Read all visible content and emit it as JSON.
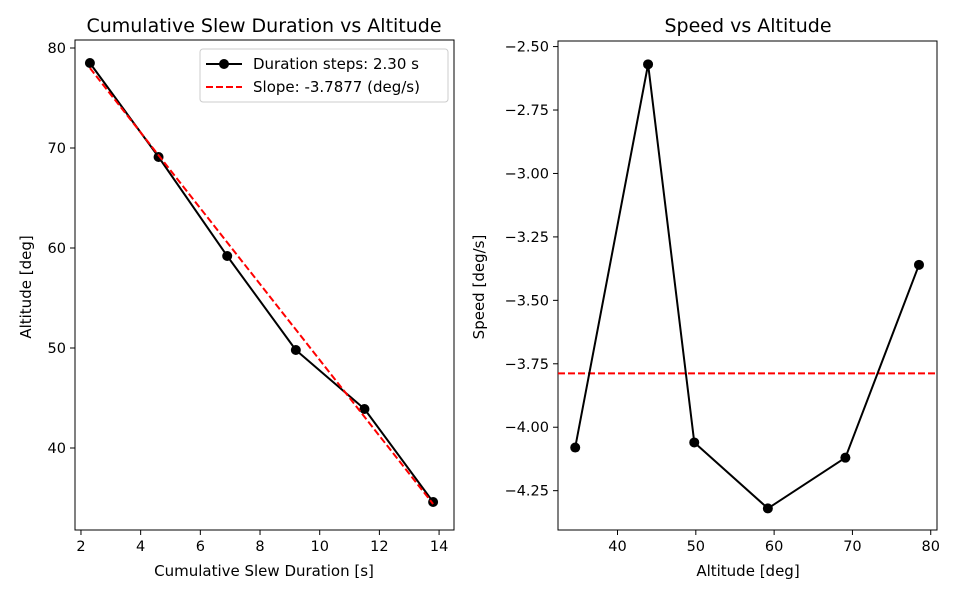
{
  "chart_data": [
    {
      "type": "line",
      "title": "Cumulative Slew Duration vs Altitude",
      "xlabel": "Cumulative Slew Duration [s]",
      "ylabel": "Altitude [deg]",
      "xlim": [
        1.8,
        14.5
      ],
      "ylim": [
        31.8,
        80.8
      ],
      "xticks": [
        2,
        4,
        6,
        8,
        10,
        12,
        14
      ],
      "yticks": [
        40,
        50,
        60,
        70,
        80
      ],
      "x_tick_labels": [
        "2",
        "4",
        "6",
        "8",
        "10",
        "12",
        "14"
      ],
      "y_tick_labels": [
        "40",
        "50",
        "60",
        "70",
        "80"
      ],
      "grid": false,
      "legend_position": "upper right",
      "series": [
        {
          "name": "Duration steps: 2.30 s",
          "style": "solid-with-markers",
          "color": "#000000",
          "x": [
            2.3,
            4.6,
            6.9,
            9.2,
            11.5,
            13.8
          ],
          "y": [
            78.5,
            69.1,
            59.2,
            49.8,
            43.9,
            34.6
          ]
        },
        {
          "name": "Slope: -3.7877 (deg/s)",
          "style": "dashed",
          "color": "#ff0000",
          "x": [
            2.3,
            13.8
          ],
          "y": [
            78.0,
            34.4
          ]
        }
      ]
    },
    {
      "type": "line",
      "title": "Speed vs Altitude",
      "xlabel": "Altitude [deg]",
      "ylabel": "Speed [deg/s]",
      "xlim": [
        32.4,
        80.8
      ],
      "ylim": [
        -4.405,
        -2.478
      ],
      "xticks": [
        40,
        50,
        60,
        70,
        80
      ],
      "yticks": [
        -4.25,
        -4.0,
        -3.75,
        -3.5,
        -3.25,
        -3.0,
        -2.75,
        -2.5
      ],
      "x_tick_labels": [
        "40",
        "50",
        "60",
        "70",
        "80"
      ],
      "y_tick_labels": [
        "−4.25",
        "−4.00",
        "−3.75",
        "−3.50",
        "−3.25",
        "−3.00",
        "−2.75",
        "−2.50"
      ],
      "grid": false,
      "series": [
        {
          "style": "solid-with-markers",
          "color": "#000000",
          "x": [
            34.6,
            43.9,
            49.8,
            59.2,
            69.1,
            78.5
          ],
          "y": [
            -4.08,
            -2.57,
            -4.06,
            -4.32,
            -4.12,
            -3.36
          ]
        }
      ],
      "reference_line": {
        "orientation": "horizontal",
        "y": -3.7877,
        "style": "dashed",
        "color": "#ff0000"
      }
    }
  ]
}
